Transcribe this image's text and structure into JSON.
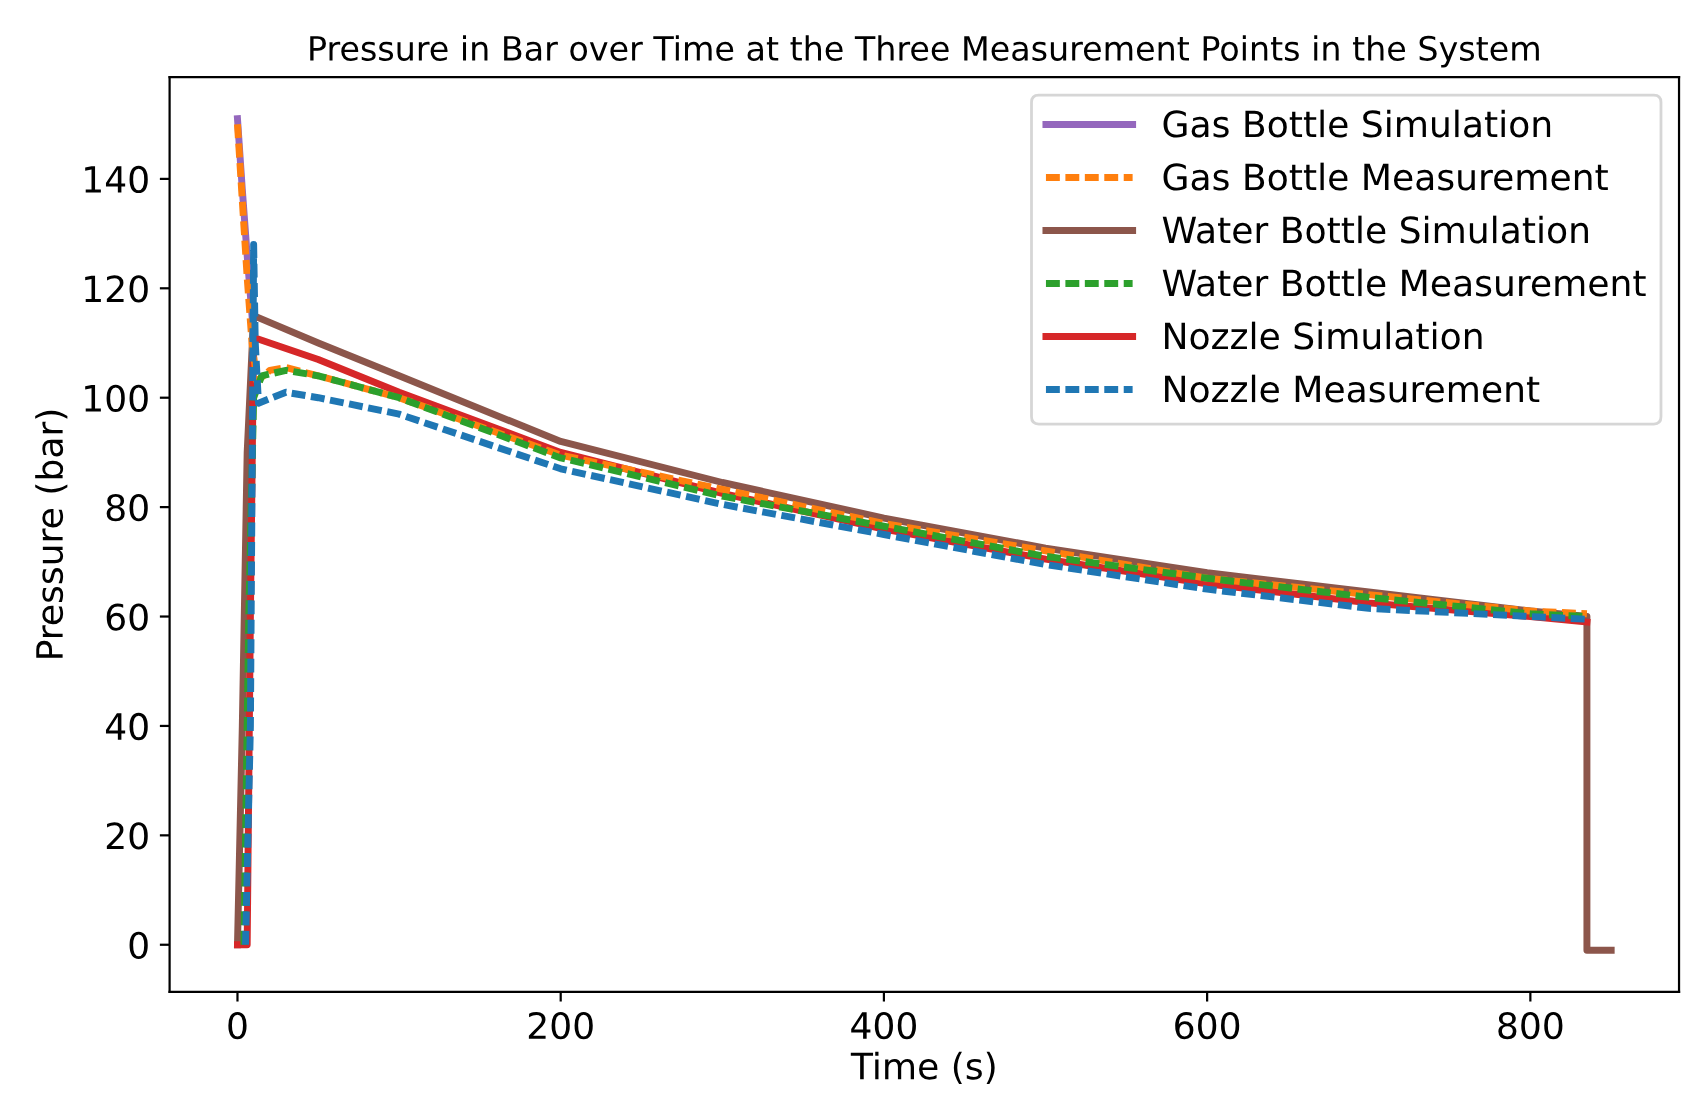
{
  "chart_data": {
    "type": "line",
    "title": "Pressure in Bar over Time at the Three Measurement Points in the System",
    "xlabel": "Time (s)",
    "ylabel": "Pressure (bar)",
    "xlim": [
      -42,
      892
    ],
    "ylim": [
      -8.6,
      158.6
    ],
    "xticks": [
      0,
      200,
      400,
      600,
      800
    ],
    "yticks": [
      0,
      20,
      40,
      60,
      80,
      100,
      120,
      140
    ],
    "legend": "top right",
    "series": [
      {
        "name": "Gas Bottle Simulation",
        "color": "#9467bd",
        "line_style": "solid",
        "x": [
          0,
          3,
          6,
          9
        ],
        "values": [
          151,
          138,
          126,
          115
        ]
      },
      {
        "name": "Gas Bottle Measurement",
        "color": "#ff7f0e",
        "line_style": "dashed",
        "x": [
          0,
          3,
          6,
          9,
          12,
          20,
          30,
          50,
          100,
          200,
          400,
          600,
          800,
          835
        ],
        "values": [
          150,
          136,
          122,
          110,
          103,
          105,
          105.5,
          104,
          100,
          89.5,
          77,
          67,
          61,
          60.5
        ]
      },
      {
        "name": "Water Bottle Simulation",
        "color": "#8c564b",
        "line_style": "solid",
        "x": [
          0,
          3,
          6,
          10,
          50,
          100,
          200,
          300,
          400,
          500,
          600,
          700,
          800,
          835,
          835,
          850
        ],
        "values": [
          0,
          40,
          90,
          115,
          110,
          104,
          92,
          84.5,
          78,
          72.5,
          68,
          64.5,
          61,
          60,
          -1,
          -1
        ]
      },
      {
        "name": "Water Bottle Measurement",
        "color": "#2ca02c",
        "line_style": "dashed",
        "x": [
          4,
          7,
          10,
          15,
          30,
          50,
          100,
          200,
          300,
          400,
          500,
          600,
          700,
          800,
          835
        ],
        "values": [
          0,
          60,
          100,
          104,
          105,
          104,
          100,
          89,
          82,
          76.5,
          71,
          67,
          63.5,
          60.5,
          60
        ]
      },
      {
        "name": "Nozzle Simulation",
        "color": "#d62728",
        "line_style": "solid",
        "x": [
          0,
          6,
          8,
          10,
          50,
          100,
          200,
          300,
          400,
          500,
          600,
          700,
          800,
          835
        ],
        "values": [
          0,
          0,
          60,
          111,
          107,
          101,
          90,
          82.5,
          76,
          70.5,
          66,
          62.5,
          60,
          59
        ]
      },
      {
        "name": "Nozzle Measurement",
        "color": "#1f77b4",
        "line_style": "dashed",
        "x": [
          5,
          8,
          10,
          11,
          13,
          30,
          50,
          100,
          200,
          300,
          400,
          500,
          600,
          700,
          800,
          835
        ],
        "values": [
          0,
          40,
          128,
          110,
          99,
          101,
          100,
          97,
          87,
          80.5,
          75,
          69.5,
          65,
          61.5,
          60,
          59.5
        ]
      }
    ]
  }
}
